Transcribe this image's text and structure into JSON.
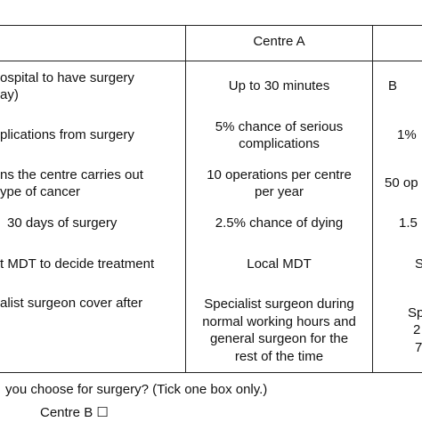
{
  "table": {
    "header": [
      "Centre A"
    ],
    "rows": [
      {
        "cells": [
          [
            "ospital to have surgery",
            "ay)"
          ],
          [
            "Up to 30 minutes"
          ],
          [
            "B"
          ]
        ]
      },
      {
        "cells": [
          [
            "plications from surgery"
          ],
          [
            "5% chance of serious",
            "complications"
          ],
          [
            "1%"
          ]
        ]
      },
      {
        "cells": [
          [
            "ns the centre carries out",
            "ype of cancer"
          ],
          [
            "10 operations per centre",
            "per year"
          ],
          [
            "50 op"
          ]
        ]
      },
      {
        "cells": [
          [
            "30 days of surgery"
          ],
          [
            "2.5% chance of dying"
          ],
          [
            "1.5"
          ]
        ]
      },
      {
        "cells": [
          [
            "t MDT to decide treatment"
          ],
          [
            "Local MDT"
          ],
          [
            "S"
          ]
        ]
      },
      {
        "cells": [
          [
            "alist surgeon cover after"
          ],
          [
            "Specialist surgeon during",
            "normal working hours and",
            "general surgeon for the",
            "rest of the time"
          ],
          [
            "Sp",
            "2",
            "7"
          ]
        ]
      }
    ]
  },
  "question": "you choose for surgery? (Tick one box only.)",
  "option": "Centre B ☐"
}
